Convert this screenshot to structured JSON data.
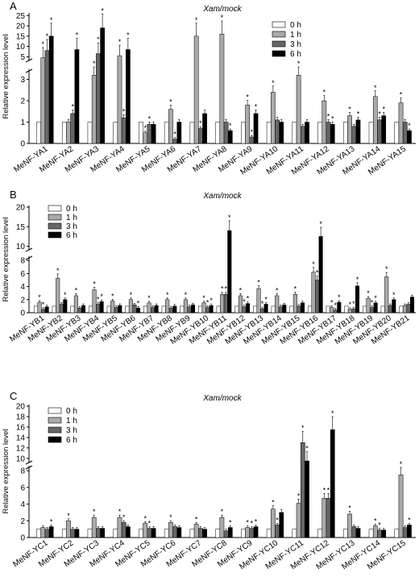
{
  "chart_data": [
    {
      "type": "bar",
      "panel_letter": "A",
      "title": "Xam/mock",
      "ylabel": "Relative expression level",
      "broken_y_axis": true,
      "lower_ticks": [
        0,
        1,
        2,
        3
      ],
      "upper_ticks": [
        5,
        10,
        15,
        20,
        25
      ],
      "legend_position": "top-right",
      "categories": [
        "MeNF-YA1",
        "MeNF-YA2",
        "MeNF-YA3",
        "MeNF-YA4",
        "MeNF-YA5",
        "MeNF-YA6",
        "MeNF-YA7",
        "MeNF-YA8",
        "MeNF-YA9",
        "MeNF-YA10",
        "MeNF-YA11",
        "MeNF-YA12",
        "MeNF-YA13",
        "MeNF-YA14",
        "MeNF-YA15"
      ],
      "series": [
        {
          "name": "0 h",
          "color": "#ffffff",
          "values": [
            1,
            1,
            1,
            1,
            1,
            1,
            1,
            1,
            1,
            1,
            1,
            1,
            1,
            1,
            1
          ]
        },
        {
          "name": "1 h",
          "color": "#aaaaaa",
          "values": [
            4.5,
            1,
            3.2,
            5.5,
            0.5,
            1.6,
            15,
            16,
            1.8,
            2.4,
            3.2,
            2.0,
            1.3,
            2.2,
            1.9
          ]
        },
        {
          "name": "3 h",
          "color": "#666666",
          "values": [
            8,
            1.4,
            6.5,
            1.2,
            0.9,
            0.2,
            0.7,
            1.0,
            0.3,
            1.1,
            0.8,
            1.0,
            0.8,
            1.1,
            1.0
          ]
        },
        {
          "name": "6 h",
          "color": "#000000",
          "values": [
            15,
            8.5,
            19,
            8.5,
            0.9,
            1.0,
            1.4,
            0.6,
            1.4,
            1.0,
            1.0,
            0.9,
            1.1,
            1.3,
            0.6
          ]
        }
      ],
      "significance": [
        [
          0,
          1,
          1,
          1
        ],
        [
          0,
          0,
          1,
          1
        ],
        [
          0,
          1,
          1,
          1
        ],
        [
          0,
          1,
          1,
          1
        ],
        [
          0,
          1,
          1,
          0
        ],
        [
          0,
          1,
          1,
          0
        ],
        [
          0,
          1,
          1,
          0
        ],
        [
          0,
          1,
          0,
          1
        ],
        [
          0,
          1,
          1,
          1
        ],
        [
          0,
          1,
          0,
          0
        ],
        [
          0,
          1,
          0,
          0
        ],
        [
          0,
          1,
          1,
          1
        ],
        [
          0,
          1,
          0,
          1
        ],
        [
          0,
          1,
          1,
          1
        ],
        [
          0,
          1,
          0,
          1
        ]
      ]
    },
    {
      "type": "bar",
      "panel_letter": "B",
      "title": "Xam/mock",
      "ylabel": "Relative expression level",
      "broken_y_axis": true,
      "lower_ticks": [
        0,
        2,
        4,
        6,
        8
      ],
      "upper_ticks": [
        10,
        15,
        20
      ],
      "legend_position": "top-left",
      "categories": [
        "MeNF-YB1",
        "MeNF-YB2",
        "MeNF-YB3",
        "MeNF-YB4",
        "MeNF-YB5",
        "MeNF-YB6",
        "MeNF-YB7",
        "MeNF-YB8",
        "MeNF-YB9",
        "MeNF-YB10",
        "MeNF-YB11",
        "MeNF-YB12",
        "MeNF-YB13",
        "MeNF-YB14",
        "MeNF-YB15",
        "MeNF-YB16",
        "MeNF-YB17",
        "MeNF-YB18",
        "MeNF-YB19",
        "MeNF-YB20",
        "MeNF-YB21"
      ],
      "series": [
        {
          "name": "0 h",
          "color": "#ffffff",
          "values": [
            1,
            1,
            1,
            1,
            1,
            1,
            1,
            1,
            1,
            1,
            1,
            1,
            1,
            1,
            1,
            1,
            1,
            1,
            1,
            1,
            1
          ]
        },
        {
          "name": "1 h",
          "color": "#aaaaaa",
          "values": [
            1.6,
            5.3,
            2.6,
            3.5,
            1.8,
            2.0,
            1.5,
            2.0,
            2.0,
            1.5,
            2.8,
            2.6,
            3.7,
            2.6,
            2.8,
            6.2,
            0.8,
            0.5,
            2.2,
            5.5,
            1.1
          ]
        },
        {
          "name": "3 h",
          "color": "#666666",
          "values": [
            0.5,
            1.3,
            0.7,
            1.3,
            0.8,
            1.2,
            0.8,
            0.7,
            0.9,
            0.8,
            2.8,
            0.9,
            0.6,
            0.9,
            1.0,
            5.0,
            0.4,
            0.6,
            0.8,
            1.1,
            1.3
          ]
        },
        {
          "name": "6 h",
          "color": "#000000",
          "values": [
            0.9,
            2.0,
            1.1,
            1.7,
            1.1,
            0.7,
            1.1,
            1.0,
            1.2,
            1.1,
            14,
            1.4,
            1.3,
            1.2,
            1.5,
            12.5,
            1.6,
            4.1,
            1.5,
            2.0,
            2.4
          ]
        }
      ],
      "significance": [
        [
          0,
          1,
          1,
          0
        ],
        [
          0,
          1,
          0,
          1
        ],
        [
          0,
          1,
          0,
          0
        ],
        [
          0,
          1,
          1,
          1
        ],
        [
          0,
          1,
          0,
          0
        ],
        [
          0,
          1,
          0,
          1
        ],
        [
          0,
          1,
          0,
          0
        ],
        [
          0,
          1,
          0,
          0
        ],
        [
          0,
          1,
          0,
          0
        ],
        [
          0,
          1,
          1,
          1
        ],
        [
          0,
          1,
          1,
          1
        ],
        [
          0,
          1,
          1,
          1
        ],
        [
          0,
          1,
          1,
          1
        ],
        [
          0,
          1,
          0,
          0
        ],
        [
          0,
          1,
          0,
          0
        ],
        [
          0,
          1,
          1,
          1
        ],
        [
          0,
          1,
          1,
          1
        ],
        [
          0,
          1,
          1,
          1
        ],
        [
          0,
          1,
          1,
          1
        ],
        [
          0,
          1,
          0,
          1
        ],
        [
          0,
          0,
          0,
          0
        ]
      ]
    },
    {
      "type": "bar",
      "panel_letter": "C",
      "title": "Xam/mock",
      "ylabel": "Relative expression level",
      "broken_y_axis": true,
      "lower_ticks": [
        0,
        2,
        4,
        6,
        8
      ],
      "upper_ticks": [
        10,
        12,
        14,
        16,
        18,
        20
      ],
      "legend_position": "top-left",
      "categories": [
        "MeNF-YC1",
        "MeNF-YC2",
        "MeNF-YC3",
        "MeNF-YC4",
        "MeNF-YC5",
        "MeNF-YC6",
        "MeNF-YC7",
        "MeNF-YC8",
        "MeNF-YC9",
        "MeNF-YC10",
        "MeNF-YC11",
        "MeNF-YC12",
        "MeNF-YC13",
        "MeNF-YC14",
        "MeNF-YC15"
      ],
      "series": [
        {
          "name": "0 h",
          "color": "#ffffff",
          "values": [
            1,
            1,
            1,
            1,
            1,
            1,
            1,
            1,
            1,
            1,
            1,
            1,
            1,
            1,
            1
          ]
        },
        {
          "name": "1 h",
          "color": "#aaaaaa",
          "values": [
            1.2,
            2.0,
            2.4,
            2.4,
            1.7,
            1.8,
            1.6,
            2.4,
            1.2,
            3.4,
            4.1,
            4.7,
            2.8,
            1.4,
            7.5
          ]
        },
        {
          "name": "3 h",
          "color": "#666666",
          "values": [
            1.0,
            1.0,
            1.1,
            1.8,
            1.1,
            1.3,
            1.1,
            0.8,
            1.1,
            1.5,
            13,
            4.7,
            1.3,
            0.9,
            1.2
          ]
        },
        {
          "name": "6 h",
          "color": "#000000",
          "values": [
            1.3,
            1.0,
            1.1,
            1.3,
            1.1,
            1.2,
            1.0,
            1.2,
            1.3,
            3.0,
            9.5,
            15.5,
            1.1,
            0.9,
            1.5
          ]
        }
      ],
      "significance": [
        [
          0,
          0,
          0,
          1
        ],
        [
          0,
          1,
          0,
          0
        ],
        [
          0,
          1,
          0,
          0
        ],
        [
          0,
          1,
          1,
          0
        ],
        [
          0,
          1,
          1,
          0
        ],
        [
          0,
          1,
          0,
          0
        ],
        [
          0,
          1,
          0,
          0
        ],
        [
          0,
          1,
          0,
          1
        ],
        [
          0,
          1,
          1,
          1
        ],
        [
          0,
          1,
          1,
          0
        ],
        [
          0,
          1,
          1,
          1
        ],
        [
          0,
          1,
          1,
          1
        ],
        [
          0,
          1,
          0,
          0
        ],
        [
          0,
          1,
          1,
          0
        ],
        [
          0,
          1,
          0,
          1
        ]
      ]
    }
  ]
}
